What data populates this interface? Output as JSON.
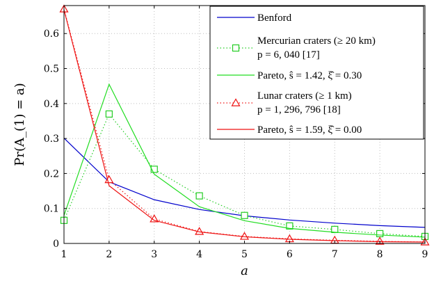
{
  "chart_data": {
    "type": "line",
    "title": "",
    "xlabel": "a",
    "ylabel": "Pr(A_(1) = a)",
    "x": [
      1,
      2,
      3,
      4,
      5,
      6,
      7,
      8,
      9
    ],
    "xlim": [
      1,
      9
    ],
    "ylim": [
      0,
      0.68
    ],
    "xticks": [
      "1",
      "2",
      "3",
      "4",
      "5",
      "6",
      "7",
      "8",
      "9"
    ],
    "yticks": [
      "0",
      "0.1",
      "0.2",
      "0.3",
      "0.4",
      "0.5",
      "0.6"
    ],
    "ytick_values": [
      0,
      0.1,
      0.2,
      0.3,
      0.4,
      0.5,
      0.6
    ],
    "grid": true,
    "legend_position": "top-right",
    "series": [
      {
        "name": "Benford",
        "color": "#0000cc",
        "style": "solid",
        "marker": "none",
        "values": [
          0.301,
          0.176,
          0.125,
          0.097,
          0.079,
          0.067,
          0.058,
          0.051,
          0.046
        ]
      },
      {
        "name": "Mercurian craters (≥ 20 km)",
        "name_line2": "p = 6, 040 [17]",
        "color": "#22cc22",
        "style": "dotted",
        "marker": "square",
        "values": [
          0.066,
          0.37,
          0.212,
          0.136,
          0.08,
          0.05,
          0.04,
          0.028,
          0.02
        ]
      },
      {
        "name": "Pareto, ŝ = 1.42, ξ̂ = 0.30",
        "color": "#22dd22",
        "style": "solid",
        "marker": "none",
        "values": [
          0.08,
          0.455,
          0.198,
          0.105,
          0.065,
          0.043,
          0.032,
          0.024,
          0.018
        ]
      },
      {
        "name": "Lunar craters (≥ 1 km)",
        "name_line2": "p = 1, 296, 796 [18]",
        "color": "#ee1111",
        "style": "dotted",
        "marker": "triangle",
        "values": [
          0.67,
          0.182,
          0.07,
          0.034,
          0.02,
          0.013,
          0.009,
          0.006,
          0.004
        ]
      },
      {
        "name": "Pareto, ŝ = 1.59, ξ̂ = 0.00",
        "color": "#ee1111",
        "style": "solid",
        "marker": "none",
        "values": [
          0.668,
          0.165,
          0.066,
          0.033,
          0.019,
          0.012,
          0.008,
          0.005,
          0.004
        ]
      }
    ]
  }
}
